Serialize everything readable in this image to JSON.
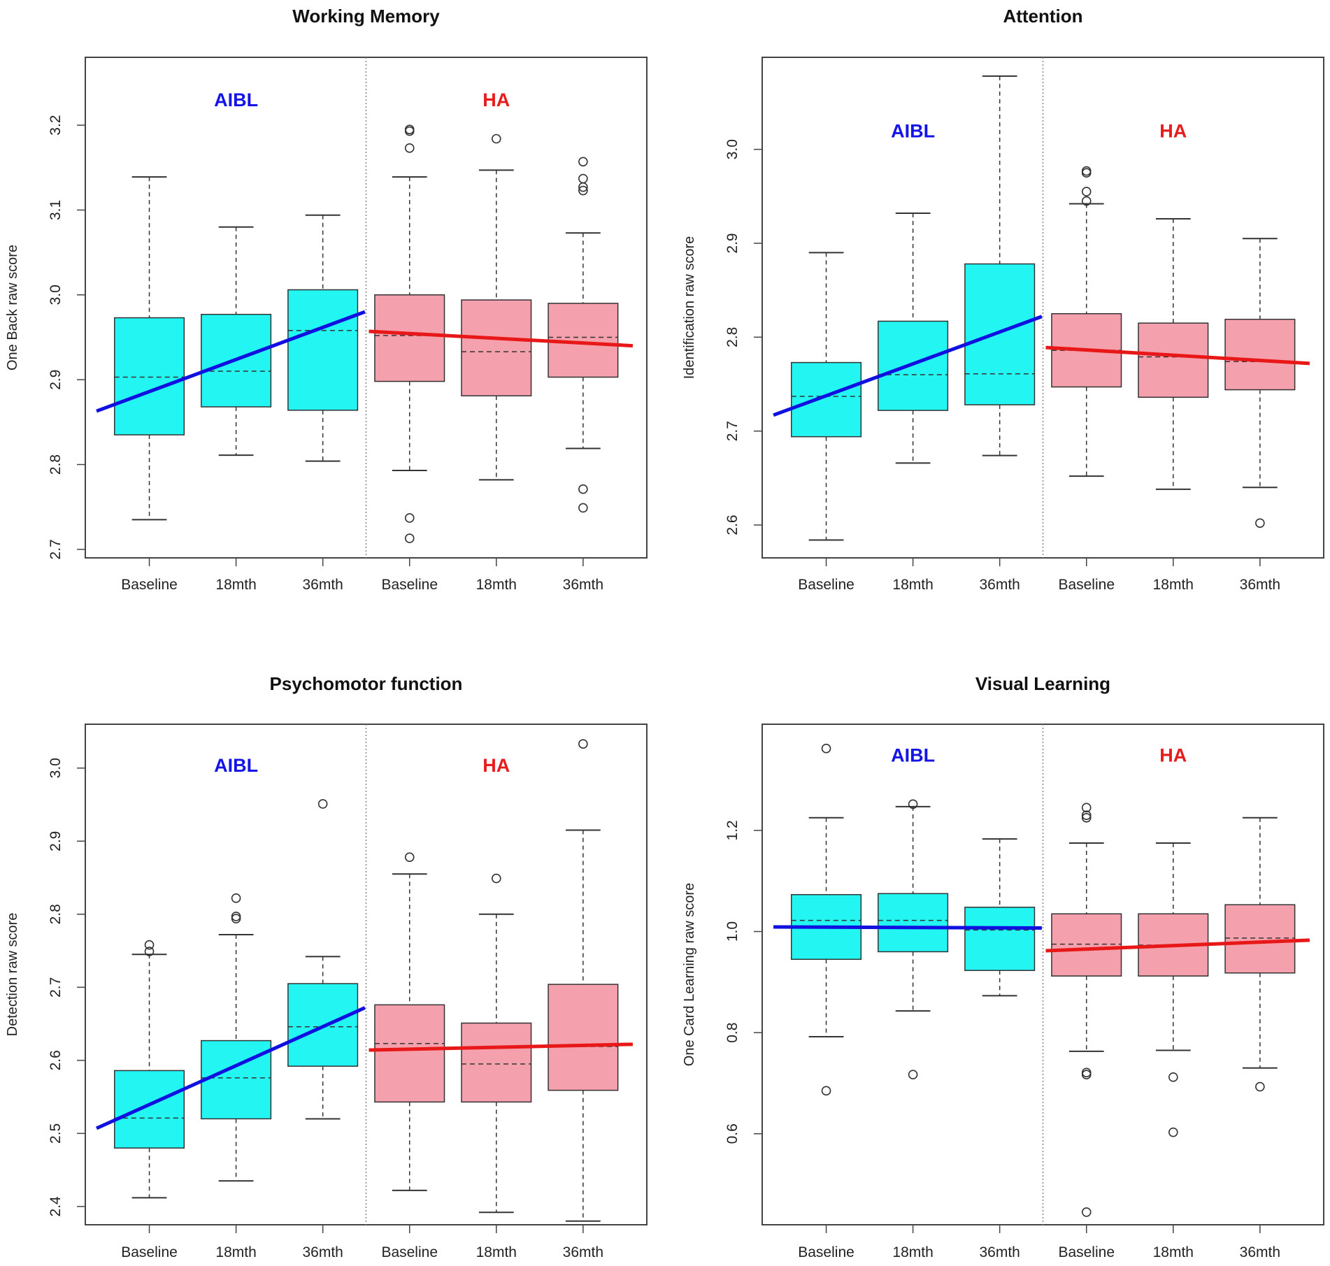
{
  "colors": {
    "aibl_box": "#22f5f2",
    "ha_box": "#f5a0ad",
    "aibl_line": "#1010e0",
    "ha_line": "#e81818",
    "aibl_text": "#1414e6",
    "ha_text": "#e81c1c"
  },
  "chart_data": [
    {
      "type": "box",
      "title": "Working Memory",
      "ylabel": "One Back raw score",
      "ylim": [
        2.69,
        3.28
      ],
      "yticks": [
        "2.7",
        "2.8",
        "2.9",
        "3.0",
        "3.1",
        "3.2"
      ],
      "categories": [
        "Baseline",
        "18mth",
        "36mth",
        "Baseline",
        "18mth",
        "36mth"
      ],
      "groups": [
        {
          "name": "AIBL",
          "color": "aibl",
          "boxes": [
            {
              "wlo": 2.735,
              "q1": 2.835,
              "med": 2.903,
              "q3": 2.973,
              "whi": 3.139,
              "out": []
            },
            {
              "wlo": 2.811,
              "q1": 2.868,
              "med": 2.91,
              "q3": 2.977,
              "whi": 3.08,
              "out": []
            },
            {
              "wlo": 2.804,
              "q1": 2.864,
              "med": 2.958,
              "q3": 3.006,
              "whi": 3.094,
              "out": []
            }
          ],
          "trend": [
            2.863,
            2.98
          ]
        },
        {
          "name": "HA",
          "color": "ha",
          "boxes": [
            {
              "wlo": 2.793,
              "q1": 2.898,
              "med": 2.952,
              "q3": 3.0,
              "whi": 3.139,
              "out": [
                2.713,
                2.737,
                3.173,
                3.193,
                3.195
              ]
            },
            {
              "wlo": 2.782,
              "q1": 2.881,
              "med": 2.933,
              "q3": 2.994,
              "whi": 3.147,
              "out": [
                3.184
              ]
            },
            {
              "wlo": 2.819,
              "q1": 2.903,
              "med": 2.95,
              "q3": 2.99,
              "whi": 3.073,
              "out": [
                2.749,
                2.771,
                3.123,
                3.127,
                3.137,
                3.157
              ]
            }
          ],
          "trend": [
            2.957,
            2.94
          ]
        }
      ]
    },
    {
      "type": "box",
      "title": "Attention",
      "ylabel": "Identification raw score",
      "ylim": [
        2.565,
        3.098
      ],
      "yticks": [
        "2.6",
        "2.7",
        "2.8",
        "2.9",
        "3.0"
      ],
      "categories": [
        "Baseline",
        "18mth",
        "36mth",
        "Baseline",
        "18mth",
        "36mth"
      ],
      "groups": [
        {
          "name": "AIBL",
          "color": "aibl",
          "boxes": [
            {
              "wlo": 2.584,
              "q1": 2.694,
              "med": 2.737,
              "q3": 2.773,
              "whi": 2.89,
              "out": []
            },
            {
              "wlo": 2.666,
              "q1": 2.722,
              "med": 2.76,
              "q3": 2.817,
              "whi": 2.932,
              "out": []
            },
            {
              "wlo": 2.674,
              "q1": 2.728,
              "med": 2.761,
              "q3": 2.878,
              "whi": 3.078,
              "out": []
            }
          ],
          "trend": [
            2.717,
            2.822
          ]
        },
        {
          "name": "HA",
          "color": "ha",
          "boxes": [
            {
              "wlo": 2.652,
              "q1": 2.747,
              "med": 2.786,
              "q3": 2.825,
              "whi": 2.942,
              "out": [
                2.945,
                2.955,
                2.975,
                2.977
              ]
            },
            {
              "wlo": 2.638,
              "q1": 2.736,
              "med": 2.779,
              "q3": 2.815,
              "whi": 2.926,
              "out": []
            },
            {
              "wlo": 2.64,
              "q1": 2.744,
              "med": 2.774,
              "q3": 2.819,
              "whi": 2.905,
              "out": [
                2.602
              ]
            }
          ],
          "trend": [
            2.789,
            2.772
          ]
        }
      ]
    },
    {
      "type": "box",
      "title": "Psychomotor function",
      "ylabel": "Detection raw score",
      "ylim": [
        2.375,
        3.06
      ],
      "yticks": [
        "2.4",
        "2.5",
        "2.6",
        "2.7",
        "2.8",
        "2.9",
        "3.0"
      ],
      "categories": [
        "Baseline",
        "18mth",
        "36mth",
        "Baseline",
        "18mth",
        "36mth"
      ],
      "groups": [
        {
          "name": "AIBL",
          "color": "aibl",
          "boxes": [
            {
              "wlo": 2.412,
              "q1": 2.48,
              "med": 2.521,
              "q3": 2.586,
              "whi": 2.745,
              "out": [
                2.749,
                2.758
              ]
            },
            {
              "wlo": 2.435,
              "q1": 2.52,
              "med": 2.576,
              "q3": 2.627,
              "whi": 2.772,
              "out": [
                2.794,
                2.797,
                2.822
              ]
            },
            {
              "wlo": 2.52,
              "q1": 2.592,
              "med": 2.646,
              "q3": 2.705,
              "whi": 2.742,
              "out": [
                2.951
              ]
            }
          ],
          "trend": [
            2.507,
            2.672
          ]
        },
        {
          "name": "HA",
          "color": "ha",
          "boxes": [
            {
              "wlo": 2.422,
              "q1": 2.543,
              "med": 2.623,
              "q3": 2.676,
              "whi": 2.855,
              "out": [
                2.878
              ]
            },
            {
              "wlo": 2.392,
              "q1": 2.543,
              "med": 2.595,
              "q3": 2.651,
              "whi": 2.8,
              "out": [
                2.849
              ]
            },
            {
              "wlo": 2.38,
              "q1": 2.559,
              "med": 2.619,
              "q3": 2.704,
              "whi": 2.915,
              "out": [
                3.033
              ]
            }
          ],
          "trend": [
            2.614,
            2.622
          ]
        }
      ]
    },
    {
      "type": "box",
      "title": "Visual Learning",
      "ylabel": "One Card Learning raw score",
      "ylim": [
        0.42,
        1.41
      ],
      "yticks": [
        "0.6",
        "0.8",
        "1.0",
        "1.2"
      ],
      "categories": [
        "Baseline",
        "18mth",
        "36mth",
        "Baseline",
        "18mth",
        "36mth"
      ],
      "groups": [
        {
          "name": "AIBL",
          "color": "aibl",
          "boxes": [
            {
              "wlo": 0.792,
              "q1": 0.945,
              "med": 1.022,
              "q3": 1.073,
              "whi": 1.225,
              "out": [
                0.685,
                1.362
              ]
            },
            {
              "wlo": 0.843,
              "q1": 0.96,
              "med": 1.022,
              "q3": 1.075,
              "whi": 1.247,
              "out": [
                0.717,
                1.252
              ]
            },
            {
              "wlo": 0.873,
              "q1": 0.923,
              "med": 1.003,
              "q3": 1.048,
              "whi": 1.183,
              "out": []
            }
          ],
          "trend": [
            1.009,
            1.007
          ]
        },
        {
          "name": "HA",
          "color": "ha",
          "boxes": [
            {
              "wlo": 0.763,
              "q1": 0.912,
              "med": 0.975,
              "q3": 1.035,
              "whi": 1.175,
              "out": [
                0.445,
                0.717,
                0.721,
                1.225,
                1.23,
                1.245
              ]
            },
            {
              "wlo": 0.765,
              "q1": 0.912,
              "med": 0.973,
              "q3": 1.035,
              "whi": 1.175,
              "out": [
                0.603,
                0.712
              ]
            },
            {
              "wlo": 0.73,
              "q1": 0.918,
              "med": 0.987,
              "q3": 1.053,
              "whi": 1.225,
              "out": [
                0.693
              ]
            }
          ],
          "trend": [
            0.962,
            0.983
          ]
        }
      ]
    }
  ]
}
